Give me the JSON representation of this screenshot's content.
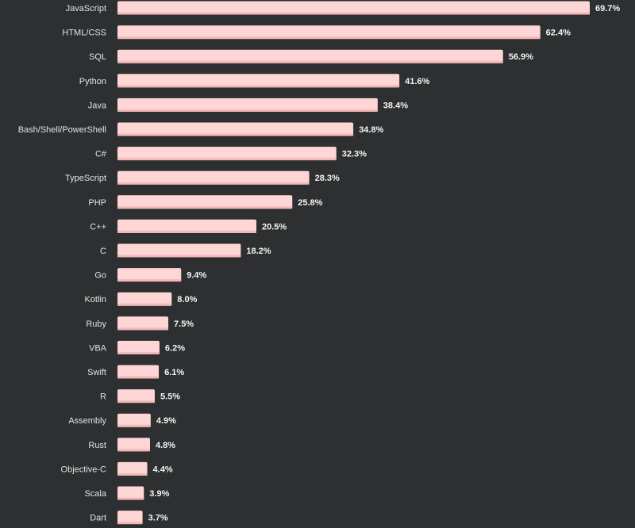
{
  "chart_data": {
    "type": "bar",
    "orientation": "horizontal",
    "title": "",
    "xlabel": "",
    "ylabel": "",
    "value_suffix": "%",
    "grid": false,
    "legend": "none",
    "bar_color": "#ffd6d6",
    "bar_shadow_color": "#f3b9b9",
    "background_color": "#2d2f31",
    "xlim": [
      0,
      69.7
    ],
    "categories": [
      "JavaScript",
      "HTML/CSS",
      "SQL",
      "Python",
      "Java",
      "Bash/Shell/PowerShell",
      "C#",
      "TypeScript",
      "PHP",
      "C++",
      "C",
      "Go",
      "Kotlin",
      "Ruby",
      "VBA",
      "Swift",
      "R",
      "Assembly",
      "Rust",
      "Objective-C",
      "Scala",
      "Dart"
    ],
    "values": [
      69.7,
      62.4,
      56.9,
      41.6,
      38.4,
      34.8,
      32.3,
      28.3,
      25.8,
      20.5,
      18.2,
      9.4,
      8.0,
      7.5,
      6.2,
      6.1,
      5.5,
      4.9,
      4.8,
      4.4,
      3.9,
      3.7
    ],
    "value_labels": [
      "69.7%",
      "62.4%",
      "56.9%",
      "41.6%",
      "38.4%",
      "34.8%",
      "32.3%",
      "28.3%",
      "25.8%",
      "20.5%",
      "18.2%",
      "9.4%",
      "8.0%",
      "7.5%",
      "6.2%",
      "6.1%",
      "5.5%",
      "4.9%",
      "4.8%",
      "4.4%",
      "3.9%",
      "3.7%"
    ]
  }
}
